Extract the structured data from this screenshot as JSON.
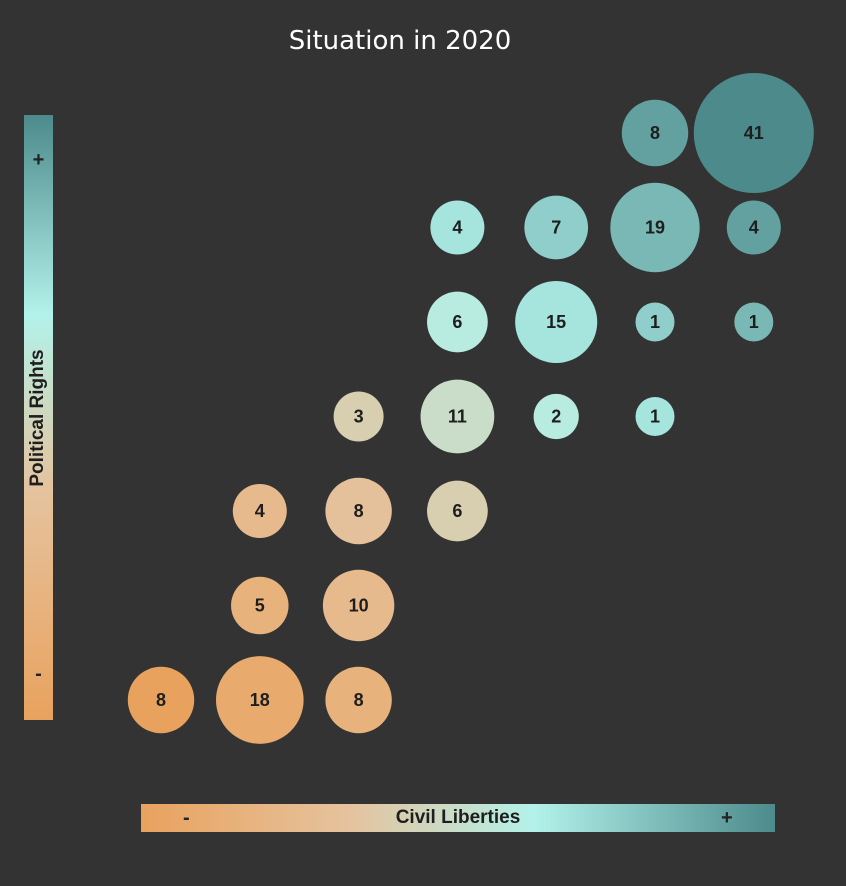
{
  "chart_data": {
    "type": "scatter",
    "subtype": "bubble",
    "title": "Situation in 2020",
    "xlabel": "Civil Liberties",
    "ylabel": "Political Rights",
    "x_low_label": "-",
    "x_high_label": "+",
    "y_low_label": "-",
    "y_high_label": "+",
    "x_levels": [
      1,
      2,
      3,
      4,
      5,
      6,
      7
    ],
    "y_levels": [
      1,
      2,
      3,
      4,
      5,
      6,
      7
    ],
    "points": [
      {
        "x": 6,
        "y": 7,
        "value": 8
      },
      {
        "x": 7,
        "y": 7,
        "value": 41
      },
      {
        "x": 4,
        "y": 6,
        "value": 4
      },
      {
        "x": 5,
        "y": 6,
        "value": 7
      },
      {
        "x": 6,
        "y": 6,
        "value": 19
      },
      {
        "x": 7,
        "y": 6,
        "value": 4
      },
      {
        "x": 4,
        "y": 5,
        "value": 6
      },
      {
        "x": 5,
        "y": 5,
        "value": 15
      },
      {
        "x": 6,
        "y": 5,
        "value": 1
      },
      {
        "x": 7,
        "y": 5,
        "value": 1
      },
      {
        "x": 3,
        "y": 4,
        "value": 3
      },
      {
        "x": 4,
        "y": 4,
        "value": 11
      },
      {
        "x": 5,
        "y": 4,
        "value": 2
      },
      {
        "x": 6,
        "y": 4,
        "value": 1
      },
      {
        "x": 2,
        "y": 3,
        "value": 4
      },
      {
        "x": 3,
        "y": 3,
        "value": 8
      },
      {
        "x": 4,
        "y": 3,
        "value": 6
      },
      {
        "x": 2,
        "y": 2,
        "value": 5
      },
      {
        "x": 3,
        "y": 2,
        "value": 10
      },
      {
        "x": 1,
        "y": 1,
        "value": 8
      },
      {
        "x": 2,
        "y": 1,
        "value": 18
      },
      {
        "x": 3,
        "y": 1,
        "value": 8
      }
    ],
    "color_scale": [
      "#e9a25e",
      "#e5c39e",
      "#b2f2ea",
      "#4d8a8c"
    ],
    "grid": false,
    "legend": "none"
  },
  "colors": {
    "background": "#333333",
    "title": "#ffffff",
    "label_text": "#1e1e1e"
  }
}
